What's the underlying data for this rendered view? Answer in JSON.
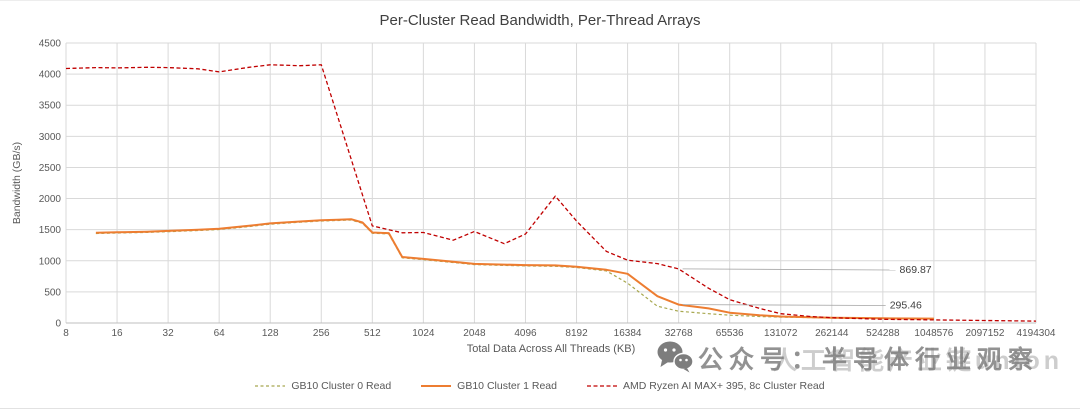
{
  "chart_data": {
    "type": "line",
    "title": "Per-Cluster Read Bandwidth, Per-Thread Arrays",
    "xlabel": "Total Data Across All Threads (KB)",
    "ylabel": "Bandwidth (GB/s)",
    "x_scale": "log2",
    "x_ticks": [
      8,
      16,
      32,
      64,
      128,
      256,
      512,
      1024,
      2048,
      4096,
      8192,
      16384,
      32768,
      65536,
      131072,
      262144,
      524288,
      1048576,
      2097152,
      4194304
    ],
    "ylim": [
      0,
      4500
    ],
    "y_tick_step": 500,
    "grid": true,
    "legend_position": "bottom",
    "series": [
      {
        "name": "GB10 Cluster 0 Read",
        "color": "#a8a850",
        "dash": "3 2.5",
        "width": 1.2,
        "points": [
          [
            12,
            1438
          ],
          [
            16,
            1446
          ],
          [
            24,
            1456
          ],
          [
            32,
            1468
          ],
          [
            48,
            1486
          ],
          [
            64,
            1502
          ],
          [
            96,
            1550
          ],
          [
            128,
            1588
          ],
          [
            192,
            1620
          ],
          [
            256,
            1640
          ],
          [
            320,
            1648
          ],
          [
            384,
            1656
          ],
          [
            448,
            1602
          ],
          [
            512,
            1442
          ],
          [
            640,
            1432
          ],
          [
            768,
            1048
          ],
          [
            1024,
            1018
          ],
          [
            1536,
            972
          ],
          [
            2048,
            938
          ],
          [
            3072,
            926
          ],
          [
            4096,
            918
          ],
          [
            6144,
            912
          ],
          [
            8192,
            892
          ],
          [
            12288,
            838
          ],
          [
            16384,
            640
          ],
          [
            24576,
            270
          ],
          [
            32768,
            190
          ],
          [
            49152,
            150
          ],
          [
            65536,
            125
          ],
          [
            98304,
            105
          ],
          [
            131072,
            95
          ],
          [
            196608,
            86
          ],
          [
            262144,
            80
          ],
          [
            393216,
            76
          ],
          [
            524288,
            73
          ],
          [
            786432,
            70
          ],
          [
            1048576,
            68
          ]
        ]
      },
      {
        "name": "GB10 Cluster 1 Read",
        "color": "#ed7d31",
        "dash": "",
        "width": 2,
        "points": [
          [
            12,
            1450
          ],
          [
            16,
            1458
          ],
          [
            24,
            1468
          ],
          [
            32,
            1480
          ],
          [
            48,
            1498
          ],
          [
            64,
            1515
          ],
          [
            96,
            1562
          ],
          [
            128,
            1600
          ],
          [
            192,
            1632
          ],
          [
            256,
            1652
          ],
          [
            320,
            1660
          ],
          [
            384,
            1668
          ],
          [
            448,
            1615
          ],
          [
            512,
            1455
          ],
          [
            640,
            1445
          ],
          [
            768,
            1060
          ],
          [
            1024,
            1030
          ],
          [
            1536,
            985
          ],
          [
            2048,
            950
          ],
          [
            3072,
            938
          ],
          [
            4096,
            930
          ],
          [
            6144,
            925
          ],
          [
            8192,
            905
          ],
          [
            12288,
            855
          ],
          [
            16384,
            790
          ],
          [
            24576,
            430
          ],
          [
            32768,
            295.46
          ],
          [
            49152,
            235
          ],
          [
            65536,
            165
          ],
          [
            98304,
            125
          ],
          [
            131072,
            105
          ],
          [
            196608,
            92
          ],
          [
            262144,
            85
          ],
          [
            393216,
            80
          ],
          [
            524288,
            76
          ],
          [
            786432,
            72
          ],
          [
            1048576,
            70
          ]
        ]
      },
      {
        "name": "AMD Ryzen AI MAX+ 395, 8c Cluster Read",
        "color": "#c00000",
        "dash": "4 2.5",
        "width": 1.3,
        "points": [
          [
            8,
            4090
          ],
          [
            12,
            4105
          ],
          [
            16,
            4100
          ],
          [
            24,
            4110
          ],
          [
            32,
            4105
          ],
          [
            48,
            4085
          ],
          [
            64,
            4035
          ],
          [
            96,
            4110
          ],
          [
            128,
            4150
          ],
          [
            192,
            4135
          ],
          [
            256,
            4150
          ],
          [
            512,
            1560
          ],
          [
            768,
            1450
          ],
          [
            1024,
            1455
          ],
          [
            1536,
            1330
          ],
          [
            2048,
            1470
          ],
          [
            3072,
            1275
          ],
          [
            4096,
            1430
          ],
          [
            6144,
            2040
          ],
          [
            8192,
            1640
          ],
          [
            12288,
            1150
          ],
          [
            16384,
            1010
          ],
          [
            24576,
            955
          ],
          [
            32768,
            869.87
          ],
          [
            49152,
            560
          ],
          [
            65536,
            375
          ],
          [
            98304,
            235
          ],
          [
            131072,
            150
          ],
          [
            196608,
            105
          ],
          [
            262144,
            85
          ],
          [
            393216,
            70
          ],
          [
            524288,
            60
          ],
          [
            786432,
            55
          ],
          [
            1048576,
            50
          ],
          [
            2097152,
            40
          ],
          [
            4194304,
            30
          ]
        ]
      }
    ],
    "annotations": [
      {
        "text": "869.87",
        "anchor": [
          32768,
          869.87
        ],
        "label": [
          640000,
          900
        ]
      },
      {
        "text": "295.46",
        "anchor": [
          32768,
          295.46
        ],
        "label": [
          560000,
          330
        ]
      }
    ]
  },
  "watermark": {
    "icon": "wechat-icon",
    "primary": "公众号：半导体行业观察",
    "secondary": "人工智能产业链union"
  },
  "colors": {
    "gridline": "#d9d9d9",
    "axis_text": "#595959",
    "title_text": "#404040",
    "annotation_leader": "#a6a6a6"
  }
}
